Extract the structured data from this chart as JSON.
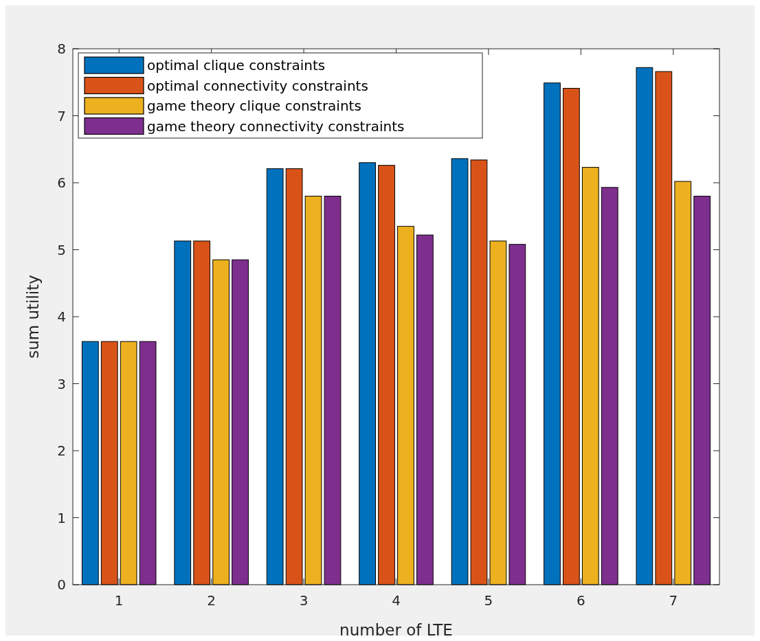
{
  "chart_data": {
    "type": "bar",
    "xlabel": "number of LTE",
    "ylabel": "sum utility",
    "categories": [
      "1",
      "2",
      "3",
      "4",
      "5",
      "6",
      "7"
    ],
    "series": [
      {
        "name": "optimal clique constraints",
        "color": "#0072bd",
        "values": [
          3.63,
          5.13,
          6.21,
          6.3,
          6.36,
          7.49,
          7.72
        ]
      },
      {
        "name": "optimal connectivity constraints",
        "color": "#d95319",
        "values": [
          3.63,
          5.13,
          6.21,
          6.26,
          6.34,
          7.41,
          7.66
        ]
      },
      {
        "name": "game theory clique constraints",
        "color": "#edb120",
        "values": [
          3.63,
          4.85,
          5.8,
          5.35,
          5.13,
          6.23,
          6.02
        ]
      },
      {
        "name": "game theory connectivity constraints",
        "color": "#7e2f8e",
        "values": [
          3.63,
          4.85,
          5.8,
          5.22,
          5.08,
          5.93,
          5.8
        ]
      }
    ],
    "ylim": [
      0,
      8
    ],
    "yticks": [
      0,
      1,
      2,
      3,
      4,
      5,
      6,
      7,
      8
    ],
    "grid": false,
    "legend": "top left"
  }
}
